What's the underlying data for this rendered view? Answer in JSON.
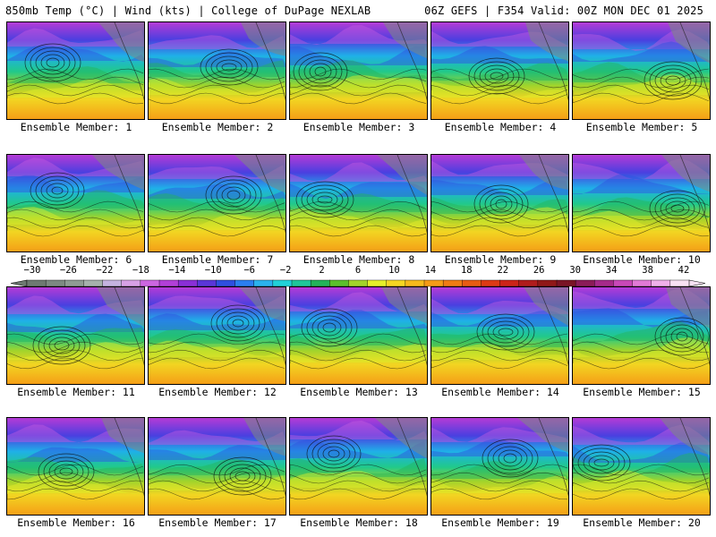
{
  "header": {
    "title_left": "850mb Temp (°C) | Wind (kts) | College of DuPage NEXLAB",
    "title_right": "06Z GEFS | F354 Valid: 00Z MON DEC 01 2025"
  },
  "members": [
    "Ensemble Member: 1",
    "Ensemble Member: 2",
    "Ensemble Member: 3",
    "Ensemble Member: 4",
    "Ensemble Member: 5",
    "Ensemble Member: 6",
    "Ensemble Member: 7",
    "Ensemble Member: 8",
    "Ensemble Member: 9",
    "Ensemble Member: 10",
    "Ensemble Member: 11",
    "Ensemble Member: 12",
    "Ensemble Member: 13",
    "Ensemble Member: 14",
    "Ensemble Member: 15",
    "Ensemble Member: 16",
    "Ensemble Member: 17",
    "Ensemble Member: 18",
    "Ensemble Member: 19",
    "Ensemble Member: 20"
  ],
  "colorbar": {
    "labels": [
      "−30",
      "−26",
      "−22",
      "−18",
      "−14",
      "−10",
      "−6",
      "−2",
      "2",
      "6",
      "10",
      "14",
      "18",
      "22",
      "26",
      "30",
      "34",
      "38",
      "42"
    ],
    "colors": [
      "#6e7a72",
      "#7d8a82",
      "#8f9c94",
      "#a6b2ac",
      "#c5b3e0",
      "#d7a1e6",
      "#cc66e0",
      "#b23fd8",
      "#8a2fd6",
      "#5a36d8",
      "#2f4fe0",
      "#2b7ff0",
      "#2bb3ee",
      "#21d2d8",
      "#1fc79a",
      "#23b35a",
      "#5cbf2c",
      "#a3d42b",
      "#e5ef2a",
      "#f5d623",
      "#f6ba1c",
      "#f59b16",
      "#f07c14",
      "#e85c12",
      "#dd3a14",
      "#cc2418",
      "#b01c1c",
      "#901818",
      "#7a1426",
      "#8b1c58",
      "#a62a8a",
      "#c948b8",
      "#e27ad6",
      "#f0b0ea",
      "#f8e2f4"
    ]
  }
}
